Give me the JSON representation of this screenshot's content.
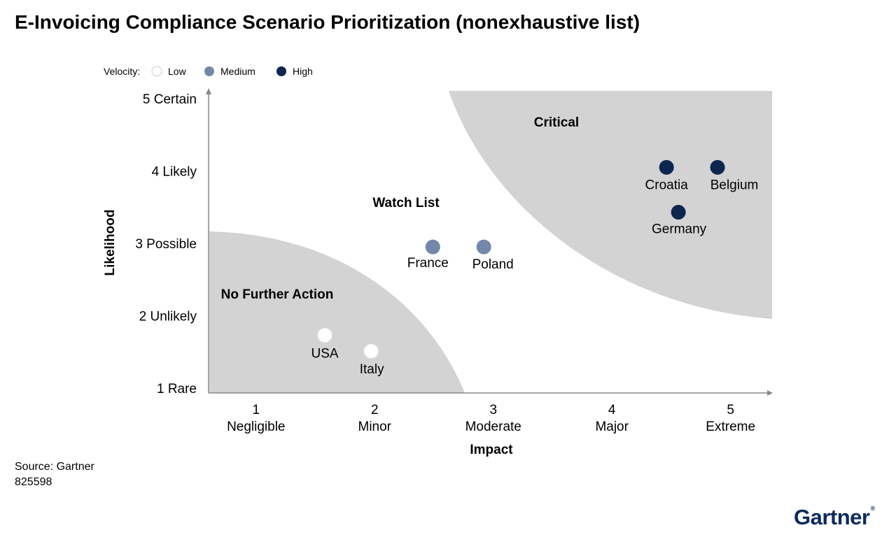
{
  "title": "E-Invoicing Compliance Scenario Prioritization (nonexhaustive list)",
  "source_label": "Source: Gartner",
  "doc_id": "825598",
  "logo_text": "Gartner",
  "logo_mark": "®",
  "colors": {
    "low": "#ffffff",
    "medium": "#7388aa",
    "high": "#0d2650",
    "zone": "#d3d3d3",
    "axis": "#888888"
  },
  "chart_data": {
    "type": "scatter",
    "title": "E-Invoicing Compliance Scenario Prioritization (nonexhaustive list)",
    "xlabel": "Impact",
    "ylabel": "Likelihood",
    "xlim": [
      0.6,
      5.35
    ],
    "ylim": [
      1,
      5
    ],
    "x_ticks": [
      {
        "value": 1,
        "number": "1",
        "label": "Negligible"
      },
      {
        "value": 2,
        "number": "2",
        "label": "Minor"
      },
      {
        "value": 3,
        "number": "3",
        "label": "Moderate"
      },
      {
        "value": 4,
        "number": "4",
        "label": "Major"
      },
      {
        "value": 5,
        "number": "5",
        "label": "Extreme"
      }
    ],
    "y_ticks": [
      {
        "value": 1,
        "label": "1 Rare"
      },
      {
        "value": 2,
        "label": "2 Unlikely"
      },
      {
        "value": 3,
        "label": "3 Possible"
      },
      {
        "value": 4,
        "label": "4 Likely"
      },
      {
        "value": 5,
        "label": "5 Certain"
      }
    ],
    "legend": {
      "title": "Velocity:",
      "position": "top-left",
      "entries": [
        {
          "key": "low",
          "label": "Low"
        },
        {
          "key": "medium",
          "label": "Medium"
        },
        {
          "key": "high",
          "label": "High"
        }
      ]
    },
    "zones": [
      {
        "name": "No Further Action",
        "corner": "bottom-left"
      },
      {
        "name": "Watch List",
        "corner": "middle"
      },
      {
        "name": "Critical",
        "corner": "top-right"
      }
    ],
    "points": [
      {
        "label": "USA",
        "x": 1.58,
        "y": 1.73,
        "velocity": "low"
      },
      {
        "label": "Italy",
        "x": 1.97,
        "y": 1.51,
        "velocity": "low"
      },
      {
        "label": "France",
        "x": 2.49,
        "y": 2.95,
        "velocity": "medium"
      },
      {
        "label": "Poland",
        "x": 2.92,
        "y": 2.95,
        "velocity": "medium"
      },
      {
        "label": "Croatia",
        "x": 4.46,
        "y": 4.05,
        "velocity": "high"
      },
      {
        "label": "Belgium",
        "x": 4.89,
        "y": 4.05,
        "velocity": "high"
      },
      {
        "label": "Germany",
        "x": 4.56,
        "y": 3.43,
        "velocity": "high"
      }
    ]
  }
}
